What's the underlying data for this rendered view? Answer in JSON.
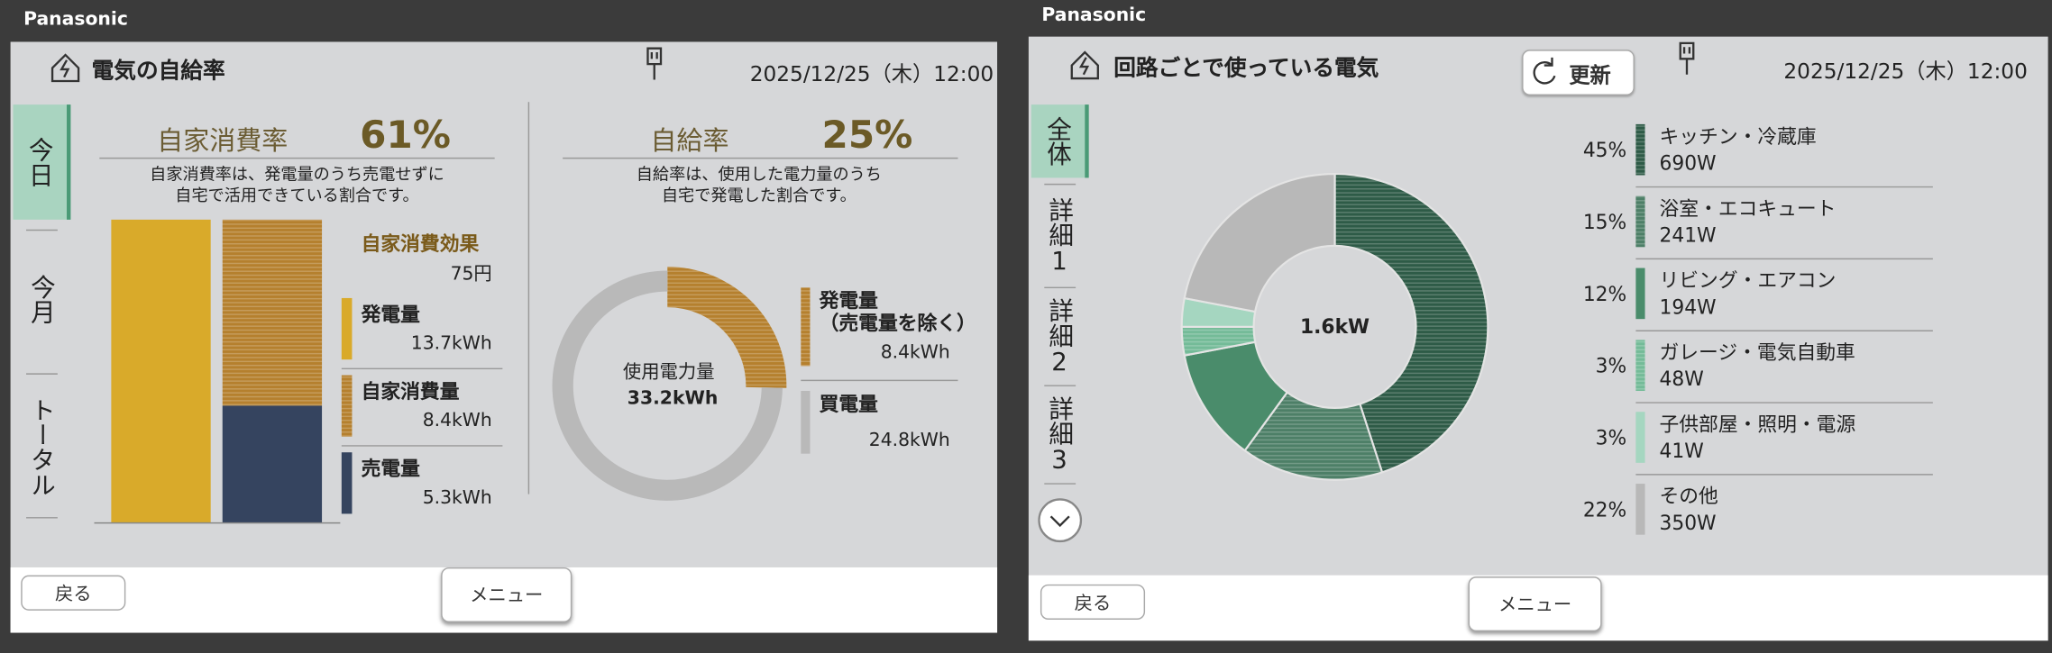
{
  "screens": [
    {
      "brand": "Panasonic",
      "title": "電気の自給率",
      "datetime": "2025/12/25（木）12:00",
      "tabs": [
        "今日",
        "今月",
        "トータル"
      ],
      "back": "戻る",
      "menu": "メニュー",
      "self_consumption": {
        "label": "自家消費率",
        "rate": "61%",
        "description": [
          "自家消費率は、発電量のうち売電せずに",
          "自宅で活用できている割合です。"
        ],
        "effect_label": "自家消費効果",
        "effect_value": "75円"
      },
      "self_sufficiency": {
        "label": "自給率",
        "rate": "25%",
        "description": [
          "自給率は、使用した電力量のうち",
          "自宅で発電した割合です。"
        ]
      }
    },
    {
      "brand": "Panasonic",
      "title": "回路ごとで使っている電気",
      "refresh": "更新",
      "datetime": "2025/12/25（木）12:00",
      "tabs": [
        "全体",
        "詳細1",
        "詳細2",
        "詳細3"
      ],
      "back": "戻る",
      "menu": "メニュー"
    }
  ],
  "chart_data": [
    {
      "type": "stacked-bar",
      "categories": [
        null,
        null
      ],
      "series": [
        {
          "name": "発電量",
          "color": "#d9aa2a",
          "hatched": false,
          "values": [
            13.7,
            null
          ],
          "value_labels": [
            "13.7kWh",
            null
          ]
        },
        {
          "name": "自家消費量",
          "color": "#b5802e",
          "hatched": true,
          "values": [
            null,
            8.4
          ],
          "value_labels": [
            null,
            "8.4kWh"
          ]
        },
        {
          "name": "売電量",
          "color": "#35445f",
          "hatched": false,
          "values": [
            null,
            5.3
          ],
          "value_labels": [
            null,
            "5.3kWh"
          ]
        }
      ]
    },
    {
      "type": "donut",
      "center_label": "使用電力量",
      "center_value": "33.2kWh",
      "categories": [
        "発電量\n（売電量を除く）",
        "買電量"
      ],
      "values": [
        8.4,
        24.8
      ],
      "value_labels": [
        "8.4kWh",
        "24.8kWh"
      ],
      "colors": [
        "#b5802e",
        "#b9b9b9"
      ],
      "hatched": [
        true,
        false
      ]
    },
    {
      "type": "donut",
      "center_value": "1.6kW",
      "categories": [
        "キッチン・冷蔵庫",
        "浴室・エコキュート",
        "リビング・エアコン",
        "ガレージ・電気自動車",
        "子供部屋・照明・電源",
        "その他"
      ],
      "values": [
        45,
        15,
        12,
        3,
        3,
        22
      ],
      "value_labels": [
        "45%",
        "15%",
        "12%",
        "3%",
        "3%",
        "22%"
      ],
      "sublabels": [
        "690W",
        "241W",
        "194W",
        "48W",
        "41W",
        "350W"
      ],
      "colors": [
        "#2e5b47",
        "#4d7f67",
        "#4a8c6b",
        "#74bb98",
        "#a5d6c0",
        "#b8b8b8"
      ],
      "hatched": [
        true,
        true,
        false,
        true,
        false,
        false
      ]
    }
  ]
}
